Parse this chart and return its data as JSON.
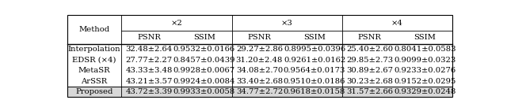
{
  "col_groups": [
    "×2",
    "×3",
    "×4"
  ],
  "sub_cols": [
    "PSNR",
    "SSIM"
  ],
  "methods": [
    "Interpolation",
    "EDSR (×4)",
    "MetaSR",
    "ArSSR",
    "Proposed"
  ],
  "data": [
    [
      "32.48±2.64",
      "0.9532±0.0166",
      "29.27±2.86",
      "0.8995±0.0396",
      "25.40±2.60",
      "0.8041±0.0583"
    ],
    [
      "27.77±2.27",
      "0.8457±0.0439",
      "31.20±2.48",
      "0.9261±0.0162",
      "29.85±2.73",
      "0.9099±0.0323"
    ],
    [
      "43.33±3.48",
      "0.9928±0.0067",
      "34.08±2.70",
      "0.9564±0.0173",
      "30.89±2.67",
      "0.9233±0.0276"
    ],
    [
      "43.21±3.57",
      "0.9924±0.0084",
      "33.40±2.68",
      "0.9510±0.0186",
      "30.23±2.68",
      "0.9152±0.0295"
    ],
    [
      "43.72±3.39",
      "0.9933±0.0058",
      "34.77±2.72",
      "0.9618±0.0158",
      "31.57±2.66",
      "0.9329±0.0248"
    ]
  ],
  "highlight_color": "#d8d8d8",
  "background_color": "#ffffff",
  "border_color": "#000000",
  "font_size": 7.2
}
